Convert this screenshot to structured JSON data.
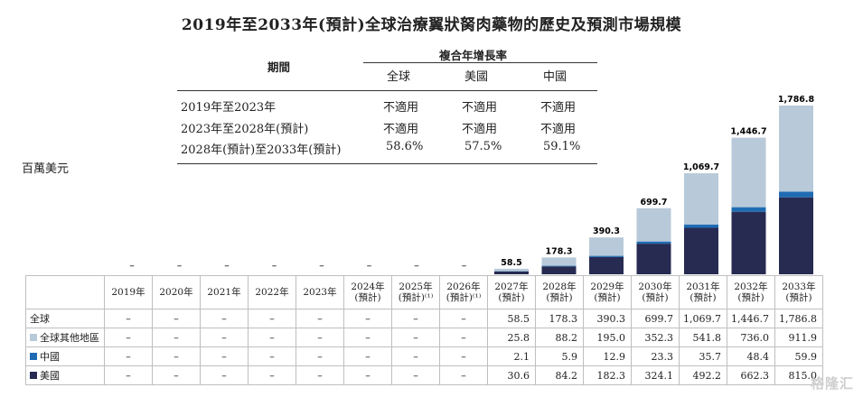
{
  "title": "2019年至2033年(預計)全球治療翼狀胬肉藥物的歷史及預測市場規模",
  "unit_label": "百萬美元",
  "cagr_table": {
    "header_period": "期間",
    "header_group": "複合年增長率",
    "columns": [
      "全球",
      "美國",
      "中國"
    ],
    "rows": [
      {
        "period": "2019年至2023年",
        "values": [
          "不適用",
          "不適用",
          "不適用"
        ]
      },
      {
        "period": "2023年至2028年(預計)",
        "values": [
          "不適用",
          "不適用",
          "不適用"
        ]
      },
      {
        "period": "2028年(預計)至2033年(預計)",
        "values": [
          "58.6%",
          "57.5%",
          "59.1%"
        ]
      }
    ]
  },
  "chart_data": {
    "type": "bar",
    "stacked": true,
    "categories": [
      "2019年",
      "2020年",
      "2021年",
      "2022年",
      "2023年",
      "2024年(預計)",
      "2025年(預計)",
      "2026年(預計)",
      "2027年(預計)",
      "2028年(預計)",
      "2029年(預計)",
      "2030年(預計)",
      "2031年(預計)",
      "2032年(預計)",
      "2033年(預計)"
    ],
    "category_lines": [
      [
        "2019年"
      ],
      [
        "2020年"
      ],
      [
        "2021年"
      ],
      [
        "2022年"
      ],
      [
        "2023年"
      ],
      [
        "2024年",
        "(預計)"
      ],
      [
        "2025年",
        "(預計)⁽¹⁾"
      ],
      [
        "2026年",
        "(預計)⁽¹⁾"
      ],
      [
        "2027年",
        "(預計)"
      ],
      [
        "2028年",
        "(預計)"
      ],
      [
        "2029年",
        "(預計)"
      ],
      [
        "2030年",
        "(預計)"
      ],
      [
        "2031年",
        "(預計)"
      ],
      [
        "2032年",
        "(預計)"
      ],
      [
        "2033年",
        "(預計)"
      ]
    ],
    "series": [
      {
        "name": "美國",
        "color": "#272b52",
        "values": [
          null,
          null,
          null,
          null,
          null,
          null,
          null,
          null,
          30.6,
          84.2,
          182.3,
          324.1,
          492.2,
          662.3,
          815.0
        ]
      },
      {
        "name": "中國",
        "color": "#1f6bb3",
        "values": [
          null,
          null,
          null,
          null,
          null,
          null,
          null,
          null,
          2.1,
          5.9,
          12.9,
          23.3,
          35.7,
          48.4,
          59.9
        ]
      },
      {
        "name": "全球其他地區",
        "color": "#b8c9d9",
        "values": [
          null,
          null,
          null,
          null,
          null,
          null,
          null,
          null,
          25.8,
          88.2,
          195.0,
          352.3,
          541.8,
          736.0,
          911.9
        ]
      }
    ],
    "totals": [
      null,
      null,
      null,
      null,
      null,
      null,
      null,
      null,
      58.5,
      178.3,
      390.3,
      699.7,
      1069.7,
      1446.7,
      1786.8
    ],
    "total_labels": [
      "–",
      "–",
      "–",
      "–",
      "–",
      "–",
      "–",
      "–",
      "58.5",
      "178.3",
      "390.3",
      "699.7",
      "1,069.7",
      "1,446.7",
      "1,786.8"
    ],
    "ylim": [
      0,
      1786.8
    ],
    "legend_placement": "table-left"
  },
  "data_table": {
    "rows": [
      {
        "label": "全球",
        "swatch": null,
        "values": [
          "–",
          "–",
          "–",
          "–",
          "–",
          "–",
          "–",
          "–",
          "58.5",
          "178.3",
          "390.3",
          "699.7",
          "1,069.7",
          "1,446.7",
          "1,786.8"
        ]
      },
      {
        "label": "全球其他地區",
        "swatch": "#b8c9d9",
        "values": [
          "–",
          "–",
          "–",
          "–",
          "–",
          "–",
          "–",
          "–",
          "25.8",
          "88.2",
          "195.0",
          "352.3",
          "541.8",
          "736.0",
          "911.9"
        ]
      },
      {
        "label": "中國",
        "swatch": "#1f6bb3",
        "values": [
          "–",
          "–",
          "–",
          "–",
          "–",
          "–",
          "–",
          "–",
          "2.1",
          "5.9",
          "12.9",
          "23.3",
          "35.7",
          "48.4",
          "59.9"
        ]
      },
      {
        "label": "美國",
        "swatch": "#272b52",
        "values": [
          "–",
          "–",
          "–",
          "–",
          "–",
          "–",
          "–",
          "–",
          "30.6",
          "84.2",
          "182.3",
          "324.1",
          "492.2",
          "662.3",
          "815.0"
        ]
      }
    ]
  },
  "watermark": "格隆汇"
}
